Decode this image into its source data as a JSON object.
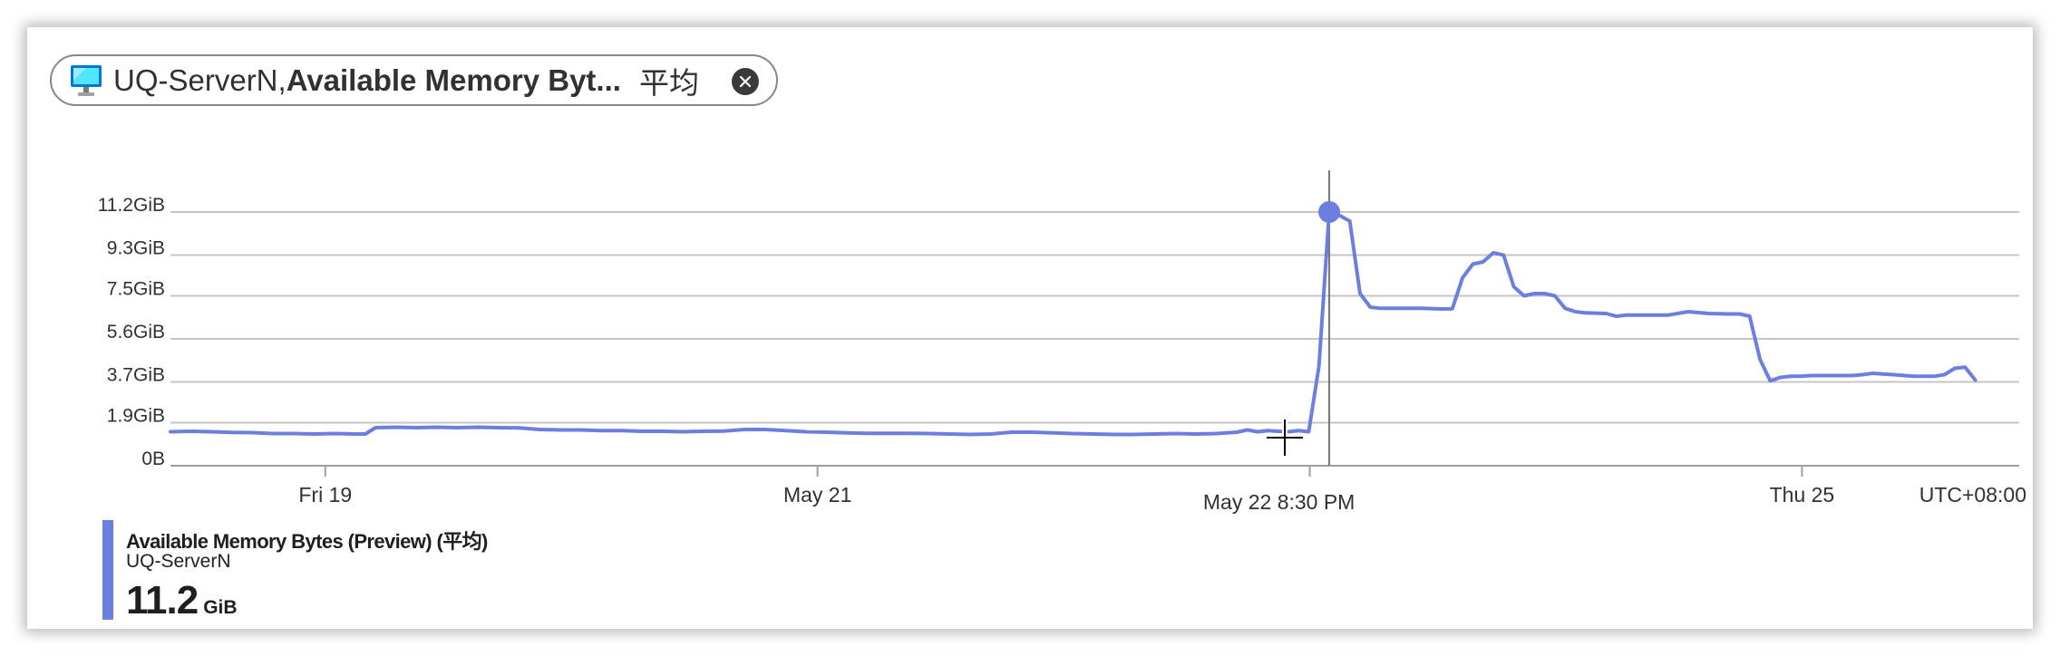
{
  "pill": {
    "resource": "UQ-ServerN,",
    "metric": "Available Memory Byt...",
    "aggregation": "平均",
    "icon": "virtual-machine-icon",
    "close_icon": "close-circle-icon"
  },
  "colors": {
    "series": "#6b7fe0",
    "grid": "#c8c6c4",
    "axis_text": "#323130"
  },
  "chart_data": {
    "type": "line",
    "y_unit": "GiB",
    "y_ticks": [
      {
        "label": "11.2GiB",
        "value": 11.2
      },
      {
        "label": "9.3GiB",
        "value": 9.3
      },
      {
        "label": "7.5GiB",
        "value": 7.5
      },
      {
        "label": "5.6GiB",
        "value": 5.6
      },
      {
        "label": "3.7GiB",
        "value": 3.7
      },
      {
        "label": "1.9GiB",
        "value": 1.9
      },
      {
        "label": "0B",
        "value": 0
      }
    ],
    "ylim": [
      0,
      11.2
    ],
    "x_range_hours": [
      0,
      184
    ],
    "x_ticks": [
      {
        "label": "Fri 19",
        "hour": 15.1
      },
      {
        "label": "May 21",
        "hour": 63.1
      },
      {
        "label": "May 22 8:30 PM",
        "hour": 108.1,
        "cursor": true
      },
      {
        "label": "Thu 25",
        "hour": 159.1
      }
    ],
    "cursor_tick_hour": 111.1,
    "timezone": "UTC+08:00",
    "gridlines": true,
    "series": [
      {
        "name": "Available Memory Bytes (Preview) (平均)",
        "resource": "UQ-ServerN",
        "points": [
          [
            0,
            1.5
          ],
          [
            2,
            1.52
          ],
          [
            4,
            1.5
          ],
          [
            6,
            1.47
          ],
          [
            8,
            1.46
          ],
          [
            10,
            1.42
          ],
          [
            12,
            1.42
          ],
          [
            14,
            1.4
          ],
          [
            16,
            1.42
          ],
          [
            18,
            1.4
          ],
          [
            19,
            1.4
          ],
          [
            20,
            1.68
          ],
          [
            22,
            1.7
          ],
          [
            24,
            1.68
          ],
          [
            26,
            1.7
          ],
          [
            28,
            1.68
          ],
          [
            30,
            1.7
          ],
          [
            32,
            1.68
          ],
          [
            34,
            1.67
          ],
          [
            36,
            1.6
          ],
          [
            38,
            1.58
          ],
          [
            40,
            1.58
          ],
          [
            42,
            1.55
          ],
          [
            44,
            1.55
          ],
          [
            46,
            1.52
          ],
          [
            48,
            1.52
          ],
          [
            50,
            1.5
          ],
          [
            52,
            1.52
          ],
          [
            54,
            1.53
          ],
          [
            56,
            1.6
          ],
          [
            58,
            1.6
          ],
          [
            60,
            1.55
          ],
          [
            62,
            1.5
          ],
          [
            64,
            1.48
          ],
          [
            66,
            1.45
          ],
          [
            68,
            1.43
          ],
          [
            70,
            1.43
          ],
          [
            72,
            1.43
          ],
          [
            74,
            1.42
          ],
          [
            76,
            1.4
          ],
          [
            78,
            1.38
          ],
          [
            80,
            1.4
          ],
          [
            82,
            1.48
          ],
          [
            84,
            1.48
          ],
          [
            86,
            1.45
          ],
          [
            88,
            1.42
          ],
          [
            90,
            1.4
          ],
          [
            92,
            1.38
          ],
          [
            94,
            1.38
          ],
          [
            96,
            1.4
          ],
          [
            98,
            1.42
          ],
          [
            100,
            1.4
          ],
          [
            102,
            1.42
          ],
          [
            104,
            1.48
          ],
          [
            105,
            1.58
          ],
          [
            106,
            1.5
          ],
          [
            107,
            1.55
          ],
          [
            108,
            1.52
          ],
          [
            109,
            1.5
          ],
          [
            110,
            1.55
          ],
          [
            111,
            1.5
          ],
          [
            112,
            4.4
          ],
          [
            113,
            11.2
          ],
          [
            114,
            11.05
          ],
          [
            115,
            10.8
          ],
          [
            116,
            7.6
          ],
          [
            117,
            7.0
          ],
          [
            118,
            6.95
          ],
          [
            120,
            6.95
          ],
          [
            122,
            6.95
          ],
          [
            124,
            6.92
          ],
          [
            125,
            6.93
          ],
          [
            126,
            8.3
          ],
          [
            127,
            8.9
          ],
          [
            128,
            9.0
          ],
          [
            129,
            9.4
          ],
          [
            130,
            9.3
          ],
          [
            131,
            7.9
          ],
          [
            132,
            7.5
          ],
          [
            133,
            7.6
          ],
          [
            134,
            7.6
          ],
          [
            135,
            7.5
          ],
          [
            136,
            6.95
          ],
          [
            137,
            6.8
          ],
          [
            138,
            6.75
          ],
          [
            140,
            6.72
          ],
          [
            141,
            6.6
          ],
          [
            142,
            6.65
          ],
          [
            144,
            6.65
          ],
          [
            146,
            6.65
          ],
          [
            148,
            6.8
          ],
          [
            150,
            6.72
          ],
          [
            152,
            6.7
          ],
          [
            153,
            6.7
          ],
          [
            154,
            6.6
          ],
          [
            155,
            4.7
          ],
          [
            156,
            3.75
          ],
          [
            157,
            3.9
          ],
          [
            158,
            3.95
          ],
          [
            159,
            3.95
          ],
          [
            160,
            3.98
          ],
          [
            162,
            3.98
          ],
          [
            164,
            3.98
          ],
          [
            165,
            4.02
          ],
          [
            166,
            4.08
          ],
          [
            167,
            4.05
          ],
          [
            168,
            4.02
          ],
          [
            170,
            3.95
          ],
          [
            172,
            3.95
          ],
          [
            173,
            4.02
          ],
          [
            174,
            4.3
          ],
          [
            175,
            4.35
          ],
          [
            176,
            3.78
          ]
        ]
      }
    ]
  },
  "legend": {
    "title": "Available Memory Bytes (Preview) (平均)",
    "subtitle": "UQ-ServerN",
    "value": "11.2",
    "unit": "GiB"
  }
}
